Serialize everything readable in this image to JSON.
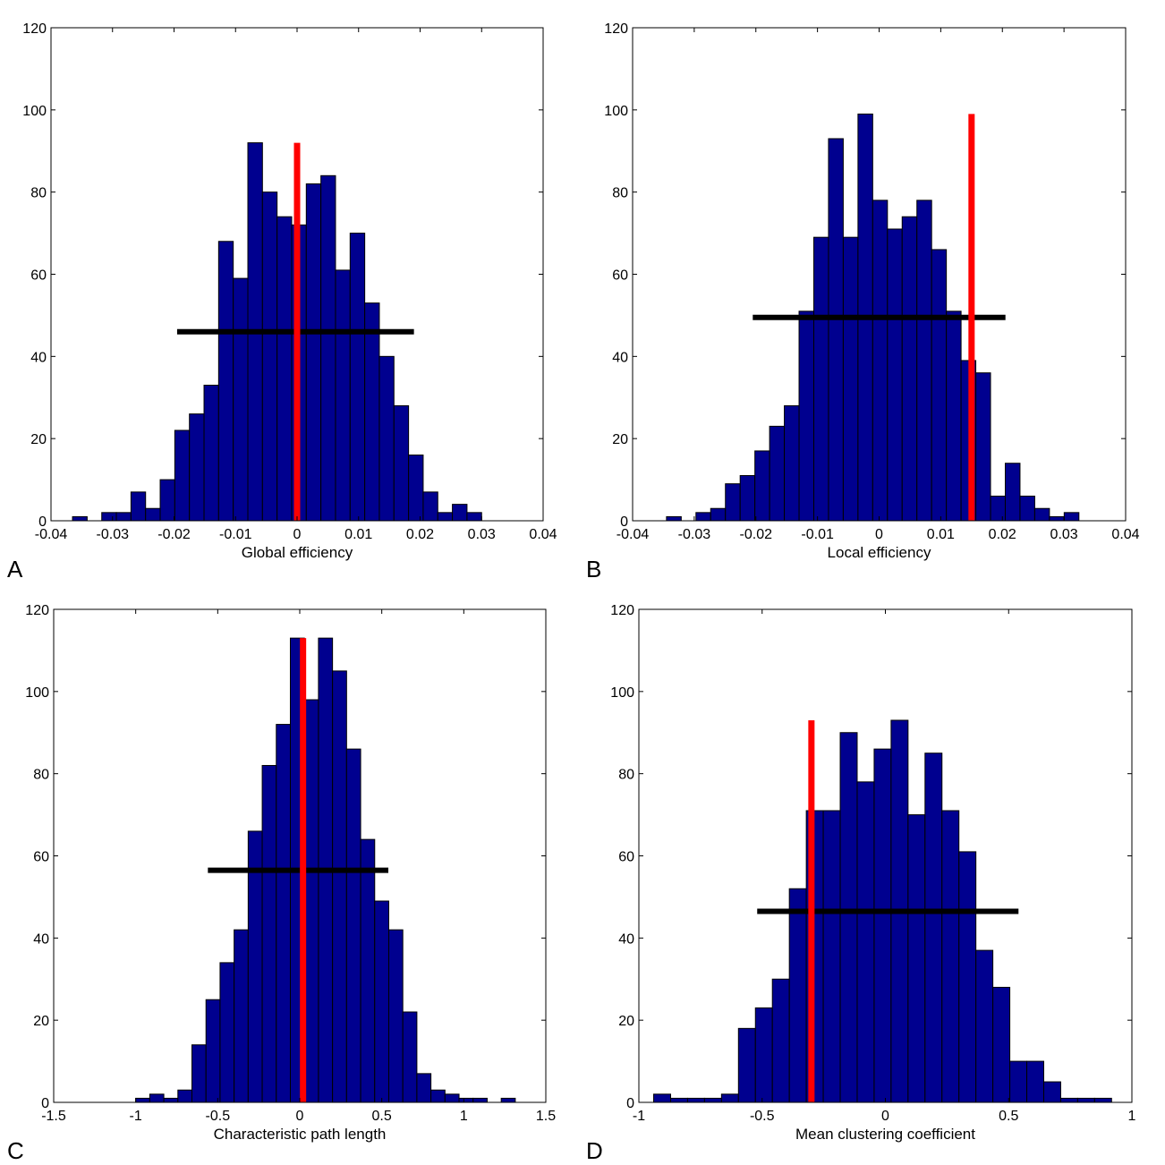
{
  "colors": {
    "bar_fill": "#00008f",
    "bar_edge": "#000000",
    "observed_line": "#ff0000",
    "interval_line": "#000000"
  },
  "chart_data": [
    {
      "panel": "A",
      "type": "bar",
      "xlabel": "Global efficiency",
      "ylabel": "",
      "xlim": [
        -0.04,
        0.04
      ],
      "ylim": [
        0,
        120
      ],
      "xticks": [
        -0.04,
        -0.03,
        -0.02,
        -0.01,
        0,
        0.01,
        0.02,
        0.03,
        0.04
      ],
      "xtick_labels": [
        "-0.04",
        "-0.03",
        "-0.02",
        "-0.01",
        "0",
        "0.01",
        "0.02",
        "0.03",
        "0.04"
      ],
      "yticks": [
        0,
        20,
        40,
        60,
        80,
        100,
        120
      ],
      "ytick_labels": [
        "0",
        "20",
        "40",
        "60",
        "80",
        "100",
        "120"
      ],
      "bin_start": -0.0365,
      "bin_width": 0.002375,
      "values": [
        1,
        0,
        2,
        2,
        7,
        3,
        10,
        22,
        26,
        33,
        68,
        59,
        92,
        80,
        74,
        72,
        82,
        84,
        61,
        70,
        53,
        40,
        28,
        16,
        7,
        2,
        4,
        2
      ],
      "observed_value": 0.0,
      "observed_height": 92,
      "interval": {
        "x1": -0.0195,
        "x2": 0.019,
        "y": 46
      }
    },
    {
      "panel": "B",
      "type": "bar",
      "xlabel": "Local efficiency",
      "ylabel": "",
      "xlim": [
        -0.04,
        0.04
      ],
      "ylim": [
        0,
        120
      ],
      "xticks": [
        -0.04,
        -0.03,
        -0.02,
        -0.01,
        0,
        0.01,
        0.02,
        0.03,
        0.04
      ],
      "xtick_labels": [
        "-0.04",
        "-0.03",
        "-0.02",
        "-0.01",
        "0",
        "0.01",
        "0.02",
        "0.03",
        "0.04"
      ],
      "yticks": [
        0,
        20,
        40,
        60,
        80,
        100,
        120
      ],
      "ytick_labels": [
        "0",
        "20",
        "40",
        "60",
        "80",
        "100",
        "120"
      ],
      "bin_start": -0.0345,
      "bin_width": 0.00239,
      "values": [
        1,
        0,
        2,
        3,
        9,
        11,
        17,
        23,
        28,
        51,
        69,
        93,
        69,
        99,
        78,
        71,
        74,
        78,
        66,
        51,
        39,
        36,
        6,
        14,
        6,
        3,
        1,
        2
      ],
      "observed_value": 0.015,
      "observed_height": 99,
      "interval": {
        "x1": -0.0205,
        "x2": 0.0205,
        "y": 49.5
      }
    },
    {
      "panel": "C",
      "type": "bar",
      "xlabel": "Characteristic path length",
      "ylabel": "",
      "xlim": [
        -1.5,
        1.5
      ],
      "ylim": [
        0,
        120
      ],
      "xticks": [
        -1.5,
        -1,
        -0.5,
        0,
        0.5,
        1,
        1.5
      ],
      "xtick_labels": [
        "-1.5",
        "-1",
        "-0.5",
        "0",
        "0.5",
        "1",
        "1.5"
      ],
      "yticks": [
        0,
        20,
        40,
        60,
        80,
        100,
        120
      ],
      "ytick_labels": [
        "0",
        "20",
        "40",
        "60",
        "80",
        "100",
        "120"
      ],
      "bin_start": -1.0,
      "bin_width": 0.0857,
      "values": [
        1,
        2,
        1,
        3,
        14,
        25,
        34,
        42,
        66,
        82,
        92,
        113,
        98,
        113,
        105,
        86,
        64,
        49,
        42,
        22,
        7,
        3,
        2,
        1,
        1,
        0,
        1
      ],
      "observed_value": 0.02,
      "observed_height": 113,
      "interval": {
        "x1": -0.56,
        "x2": 0.54,
        "y": 56.5
      }
    },
    {
      "panel": "D",
      "type": "bar",
      "xlabel": "Mean clustering coefficient",
      "ylabel": "",
      "xlim": [
        -1,
        1
      ],
      "ylim": [
        0,
        120
      ],
      "xticks": [
        -1,
        -0.5,
        0,
        0.5,
        1
      ],
      "xtick_labels": [
        "-1",
        "-0.5",
        "0",
        "0.5",
        "1"
      ],
      "yticks": [
        0,
        20,
        40,
        60,
        80,
        100,
        120
      ],
      "ytick_labels": [
        "0",
        "20",
        "40",
        "60",
        "80",
        "100",
        "120"
      ],
      "bin_start": -0.94,
      "bin_width": 0.0688,
      "values": [
        2,
        1,
        1,
        1,
        2,
        18,
        23,
        30,
        52,
        71,
        71,
        90,
        78,
        86,
        93,
        70,
        85,
        71,
        61,
        37,
        28,
        10,
        10,
        5,
        1,
        1,
        1
      ],
      "observed_value": -0.3,
      "observed_height": 93,
      "interval": {
        "x1": -0.52,
        "x2": 0.54,
        "y": 46.5
      }
    }
  ]
}
